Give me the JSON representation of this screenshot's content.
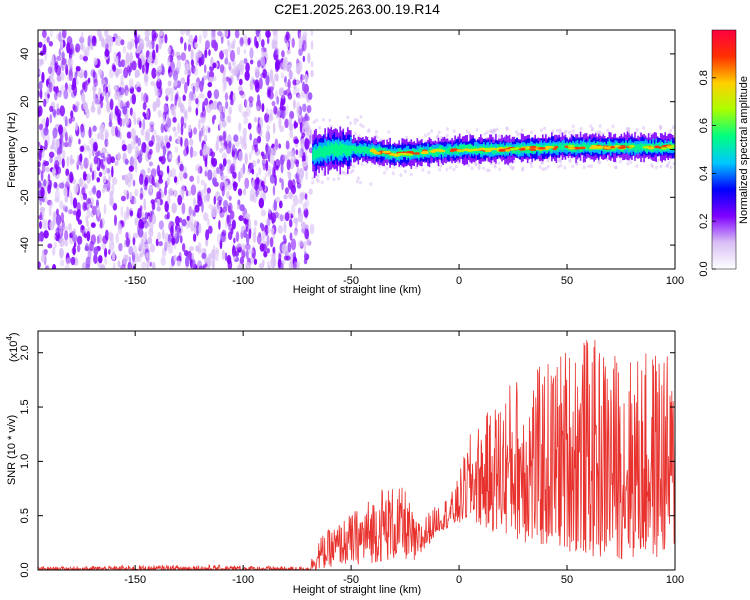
{
  "chart_data": [
    {
      "type": "heatmap",
      "title": "C2E1.2025.263.00.19.R14",
      "xlabel": "Height of straight line (km)",
      "ylabel": "Frequency (Hz)",
      "xlim": [
        -195,
        100
      ],
      "ylim": [
        -50,
        50
      ],
      "xticks": [
        -150,
        -100,
        -50,
        0,
        50,
        100
      ],
      "xtick_labels": [
        "-150",
        "-100",
        "-50",
        "0",
        "50",
        "100"
      ],
      "yticks": [
        -40,
        -20,
        0,
        20,
        40
      ],
      "ytick_labels": [
        "-40",
        "-20",
        "0",
        "20",
        "40"
      ],
      "noise_region_x": [
        -195,
        -68
      ],
      "signal_region_x": [
        -68,
        100
      ],
      "signal_center_hz": [
        {
          "x": -68,
          "f": -2
        },
        {
          "x": -60,
          "f": 0
        },
        {
          "x": -45,
          "f": 0
        },
        {
          "x": -30,
          "f": -2
        },
        {
          "x": -15,
          "f": -1
        },
        {
          "x": 0,
          "f": 0
        },
        {
          "x": 20,
          "f": 0
        },
        {
          "x": 50,
          "f": 1
        },
        {
          "x": 75,
          "f": 1
        },
        {
          "x": 100,
          "f": 1
        }
      ],
      "colorbar": {
        "label": "Normalized spectral amplitude",
        "range": [
          0,
          1
        ],
        "ticks": [
          0.0,
          0.2,
          0.4,
          0.6,
          0.8
        ],
        "tick_labels": [
          "0.0",
          "0.2",
          "0.4",
          "0.6",
          "0.8"
        ],
        "colors": [
          "#ffffff",
          "#d9bff5",
          "#7f00ff",
          "#0000ff",
          "#00c8ff",
          "#00ff80",
          "#aaff00",
          "#ffd000",
          "#ff3000",
          "#ff0040"
        ]
      }
    },
    {
      "type": "line",
      "title": "",
      "xlabel": "Height of straight line (km)",
      "ylabel": "SNR (10 * v/v)",
      "scale_label": "(x10",
      "scale_exponent": "4",
      "scale_suffix": ")",
      "xlim": [
        -195,
        100
      ],
      "ylim": [
        0,
        2.2
      ],
      "xticks": [
        -150,
        -100,
        -50,
        0,
        50,
        100
      ],
      "xtick_labels": [
        "-150",
        "-100",
        "-50",
        "0",
        "50",
        "100"
      ],
      "yticks": [
        0.0,
        0.5,
        1.0,
        1.5,
        2.0
      ],
      "ytick_labels": [
        "0.0",
        "0.5",
        "1.0",
        "1.5",
        "2.0"
      ],
      "line_color": "#e8322e",
      "series": [
        {
          "name": "SNR",
          "envelope": [
            {
              "x": -195,
              "low": 0.0,
              "high": 0.03
            },
            {
              "x": -122,
              "low": 0.0,
              "high": 0.05
            },
            {
              "x": -70,
              "low": 0.0,
              "high": 0.03
            },
            {
              "x": -65,
              "low": 0.0,
              "high": 0.3
            },
            {
              "x": -55,
              "low": 0.05,
              "high": 0.45
            },
            {
              "x": -45,
              "low": 0.05,
              "high": 0.6
            },
            {
              "x": -35,
              "low": 0.08,
              "high": 0.8
            },
            {
              "x": -25,
              "low": 0.1,
              "high": 0.75
            },
            {
              "x": -20,
              "low": 0.05,
              "high": 0.45
            },
            {
              "x": -10,
              "low": 0.35,
              "high": 0.6
            },
            {
              "x": -2,
              "low": 0.4,
              "high": 0.75
            },
            {
              "x": 5,
              "low": 0.45,
              "high": 1.25
            },
            {
              "x": 15,
              "low": 0.35,
              "high": 1.5
            },
            {
              "x": 25,
              "low": 0.3,
              "high": 1.8
            },
            {
              "x": 35,
              "low": 0.2,
              "high": 1.85
            },
            {
              "x": 45,
              "low": 0.2,
              "high": 2.0
            },
            {
              "x": 55,
              "low": 0.15,
              "high": 2.2
            },
            {
              "x": 65,
              "low": 0.1,
              "high": 2.1
            },
            {
              "x": 75,
              "low": 0.1,
              "high": 2.0
            },
            {
              "x": 85,
              "low": 0.1,
              "high": 2.0
            },
            {
              "x": 95,
              "low": 0.1,
              "high": 2.1
            },
            {
              "x": 100,
              "low": 0.2,
              "high": 1.7
            }
          ]
        }
      ]
    }
  ]
}
